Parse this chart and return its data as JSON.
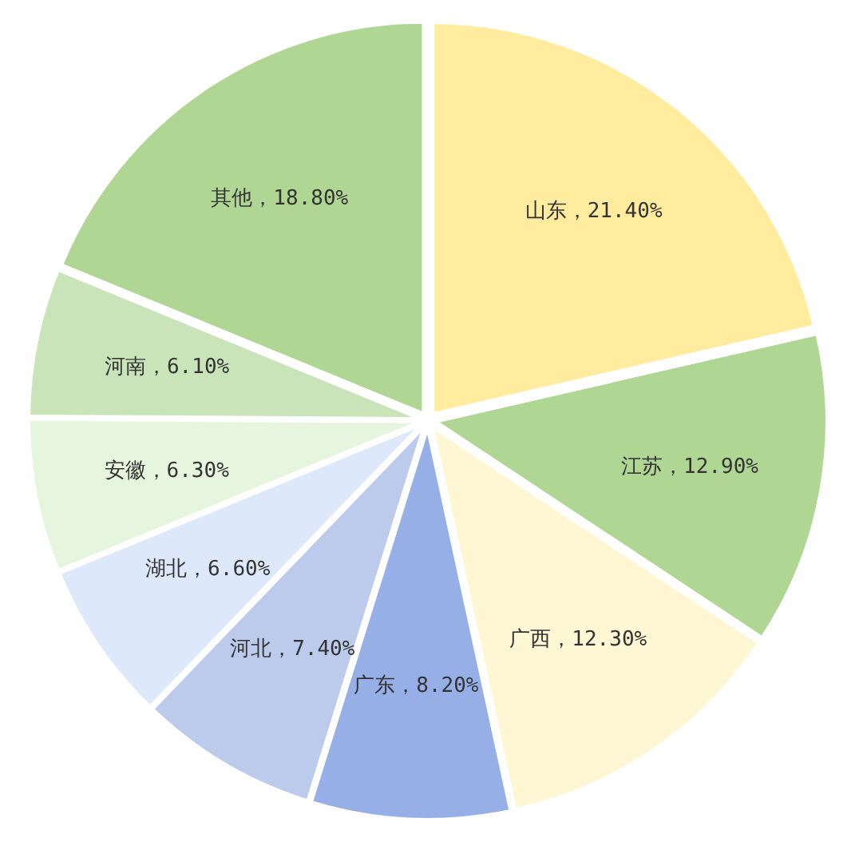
{
  "chart_data": {
    "type": "pie",
    "categories": [
      "山东",
      "江苏",
      "广西",
      "广东",
      "河北",
      "湖北",
      "安徽",
      "河南",
      "其他"
    ],
    "values": [
      21.4,
      12.9,
      12.3,
      8.2,
      7.4,
      6.6,
      6.3,
      6.1,
      18.8
    ],
    "value_labels": [
      "21.40%",
      "12.90%",
      "12.30%",
      "8.20%",
      "7.40%",
      "6.60%",
      "6.30%",
      "6.10%",
      "18.80%"
    ],
    "colors": [
      "#ffec9e",
      "#b0d694",
      "#fff6d3",
      "#96afe6",
      "#bccbeb",
      "#dde9fb",
      "#e6f6de",
      "#cae4ba",
      "#b0d694"
    ]
  }
}
